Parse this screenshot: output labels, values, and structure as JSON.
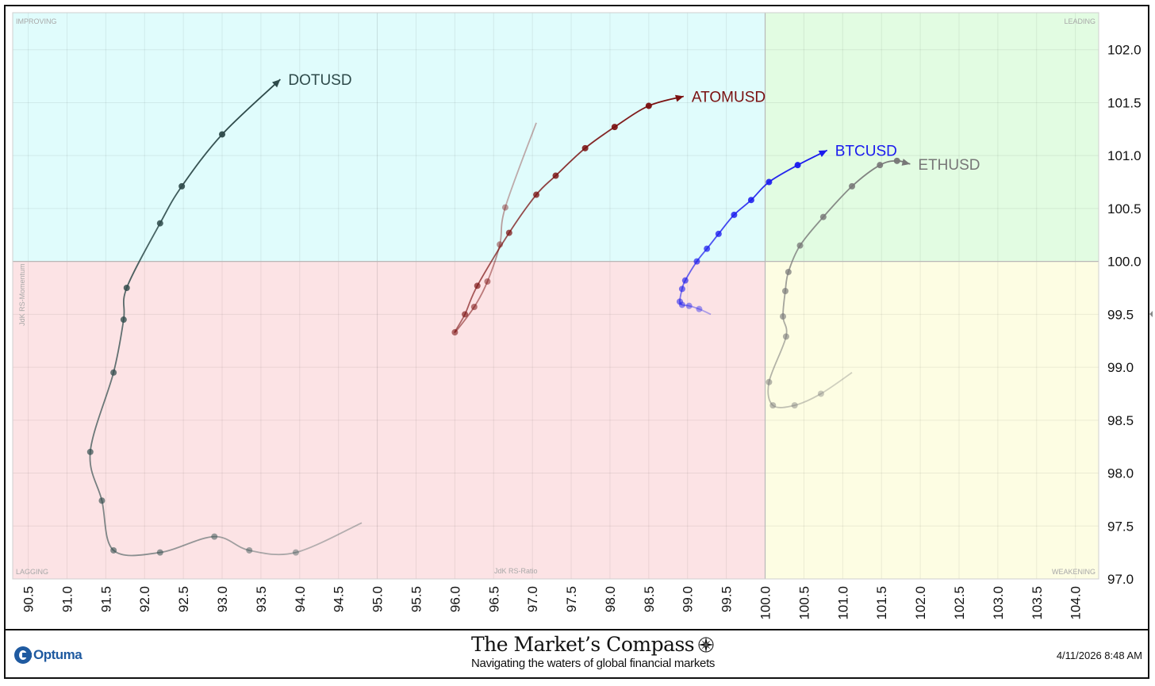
{
  "footer": {
    "logo_text": "Optuma",
    "brand_title": "The Market’s Compass",
    "brand_subtitle": "Navigating the waters of global financial markets",
    "timestamp": "4/11/2026 8:48 AM",
    "compass_icon": "compass-rose-icon"
  },
  "chart_data": {
    "type": "scatter",
    "title": "",
    "xlabel": "JdK RS-Ratio",
    "ylabel": "JdK RS-Momentum",
    "xlim": [
      90.3,
      104.3
    ],
    "ylim": [
      97.0,
      102.35
    ],
    "x_ticks": [
      "90.5",
      "91.0",
      "91.5",
      "92.0",
      "92.5",
      "93.0",
      "93.5",
      "94.0",
      "94.5",
      "95.0",
      "95.5",
      "96.0",
      "96.5",
      "97.0",
      "97.5",
      "98.0",
      "98.5",
      "99.0",
      "99.5",
      "100.0",
      "100.5",
      "101.0",
      "101.5",
      "102.0",
      "102.5",
      "103.0",
      "103.5",
      "104.0"
    ],
    "y_ticks": [
      "97.0",
      "97.5",
      "98.0",
      "98.5",
      "99.0",
      "99.5",
      "100.0",
      "100.5",
      "101.0",
      "101.5",
      "102.0"
    ],
    "grid": true,
    "quadrants": [
      {
        "name": "IMPROVING",
        "color": "#e0fcfc"
      },
      {
        "name": "LEADING",
        "color": "#e2fce2"
      },
      {
        "name": "LAGGING",
        "color": "#fce3e5"
      },
      {
        "name": "WEAKENING",
        "color": "#fdfde3"
      }
    ],
    "series": [
      {
        "name": "DOTUSD",
        "color": "#2e4a4a",
        "points": [
          [
            94.8,
            97.53
          ],
          [
            93.95,
            97.25
          ],
          [
            93.35,
            97.27
          ],
          [
            92.9,
            97.4
          ],
          [
            92.2,
            97.25
          ],
          [
            91.6,
            97.27
          ],
          [
            91.45,
            97.74
          ],
          [
            91.3,
            98.2
          ],
          [
            91.6,
            98.95
          ],
          [
            91.73,
            99.45
          ],
          [
            91.77,
            99.75
          ],
          [
            92.2,
            100.36
          ],
          [
            92.48,
            100.71
          ],
          [
            93.0,
            101.2
          ],
          [
            93.75,
            101.72
          ]
        ]
      },
      {
        "name": "ATOMUSD",
        "color": "#7a1010",
        "points": [
          [
            97.05,
            101.31
          ],
          [
            96.65,
            100.51
          ],
          [
            96.58,
            100.16
          ],
          [
            96.42,
            99.81
          ],
          [
            96.25,
            99.57
          ],
          [
            96.0,
            99.33
          ],
          [
            96.13,
            99.5
          ],
          [
            96.29,
            99.77
          ],
          [
            96.7,
            100.27
          ],
          [
            97.05,
            100.63
          ],
          [
            97.3,
            100.81
          ],
          [
            97.68,
            101.07
          ],
          [
            98.06,
            101.27
          ],
          [
            98.5,
            101.47
          ],
          [
            98.95,
            101.56
          ]
        ]
      },
      {
        "name": "BTCUSD",
        "color": "#1a1aee",
        "points": [
          [
            99.3,
            99.5
          ],
          [
            99.15,
            99.55
          ],
          [
            99.02,
            99.58
          ],
          [
            98.93,
            99.59
          ],
          [
            98.9,
            99.62
          ],
          [
            98.93,
            99.74
          ],
          [
            98.97,
            99.82
          ],
          [
            99.12,
            100.0
          ],
          [
            99.25,
            100.12
          ],
          [
            99.4,
            100.26
          ],
          [
            99.6,
            100.44
          ],
          [
            99.82,
            100.58
          ],
          [
            100.05,
            100.75
          ],
          [
            100.42,
            100.91
          ],
          [
            100.8,
            101.05
          ]
        ]
      },
      {
        "name": "ETHUSD",
        "color": "#777777",
        "points": [
          [
            101.12,
            98.95
          ],
          [
            100.72,
            98.75
          ],
          [
            100.38,
            98.64
          ],
          [
            100.1,
            98.64
          ],
          [
            100.05,
            98.86
          ],
          [
            100.27,
            99.29
          ],
          [
            100.23,
            99.48
          ],
          [
            100.26,
            99.72
          ],
          [
            100.3,
            99.9
          ],
          [
            100.45,
            100.15
          ],
          [
            100.75,
            100.42
          ],
          [
            101.12,
            100.71
          ],
          [
            101.48,
            100.91
          ],
          [
            101.7,
            100.95
          ],
          [
            101.87,
            100.92
          ]
        ]
      }
    ]
  }
}
